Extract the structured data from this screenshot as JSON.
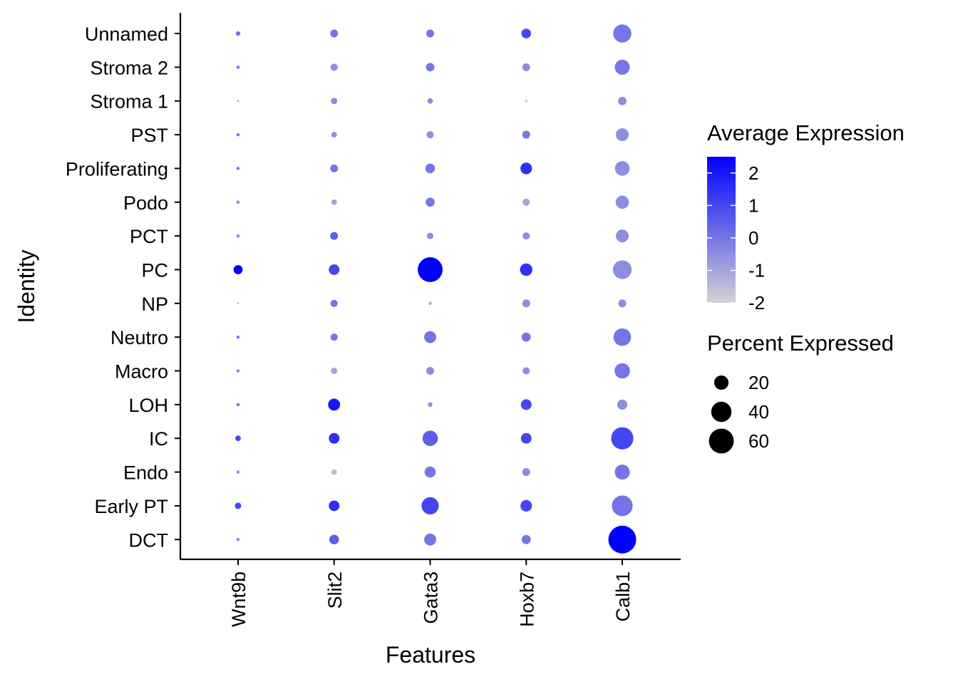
{
  "chart_data": {
    "type": "dotplot",
    "xlabel": "Features",
    "ylabel": "Identity",
    "features": [
      "Wnt9b",
      "Slit2",
      "Gata3",
      "Hoxb7",
      "Calb1"
    ],
    "identities": [
      "Unnamed",
      "Stroma 2",
      "Stroma 1",
      "PST",
      "Proliferating",
      "Podo",
      "PCT",
      "PC",
      "NP",
      "Neutro",
      "Macro",
      "LOH",
      "IC",
      "Endo",
      "Early PT",
      "DCT"
    ],
    "percent_expressed": [
      [
        2,
        6,
        6,
        9,
        32
      ],
      [
        1,
        5,
        7,
        6,
        22
      ],
      [
        0,
        4,
        3,
        1,
        7
      ],
      [
        1,
        3,
        5,
        6,
        16
      ],
      [
        1,
        6,
        9,
        13,
        21
      ],
      [
        1,
        3,
        8,
        5,
        17
      ],
      [
        1,
        6,
        4,
        5,
        16
      ],
      [
        8,
        11,
        60,
        15,
        34
      ],
      [
        0,
        5,
        1,
        6,
        6
      ],
      [
        1,
        5,
        14,
        8,
        30
      ],
      [
        1,
        4,
        6,
        5,
        23
      ],
      [
        1,
        14,
        2,
        11,
        10
      ],
      [
        3,
        11,
        23,
        11,
        48
      ],
      [
        1,
        3,
        12,
        6,
        22
      ],
      [
        4,
        11,
        29,
        13,
        42
      ],
      [
        1,
        9,
        14,
        8,
        75
      ]
    ],
    "average_expression": [
      [
        0,
        0,
        0,
        1,
        0
      ],
      [
        0,
        -0.5,
        0,
        -0.5,
        0
      ],
      [
        -0.5,
        -0.5,
        -0.5,
        -2,
        -0.5
      ],
      [
        0,
        -0.5,
        -0.5,
        0,
        -0.5
      ],
      [
        0,
        0,
        0,
        1.5,
        -0.5
      ],
      [
        -0.5,
        -1,
        0,
        -1,
        -0.5
      ],
      [
        -0.5,
        0.5,
        -0.5,
        -0.5,
        -0.5
      ],
      [
        2.5,
        1,
        2.5,
        1.5,
        -0.5
      ],
      [
        -1,
        0,
        -1,
        -0.5,
        -0.5
      ],
      [
        0,
        0,
        0,
        0,
        0
      ],
      [
        -0.5,
        -1,
        -0.5,
        -0.5,
        0
      ],
      [
        0,
        2,
        -0.5,
        1,
        -0.5
      ],
      [
        1,
        1.5,
        0.5,
        1,
        1
      ],
      [
        -0.5,
        -1.5,
        0,
        -0.5,
        0
      ],
      [
        1,
        1.5,
        1,
        1,
        0
      ],
      [
        -0.5,
        0.5,
        0,
        0,
        2.5
      ]
    ],
    "color_legend": {
      "title": "Average Expression",
      "min": -2,
      "max": 2.5,
      "ticks": [
        "2",
        "1",
        "0",
        "-1",
        "-2"
      ],
      "low_color": "#d3d3d3",
      "high_color": "#0000ff"
    },
    "size_legend": {
      "title": "Percent Expressed",
      "values": [
        "20",
        "40",
        "60"
      ]
    }
  }
}
